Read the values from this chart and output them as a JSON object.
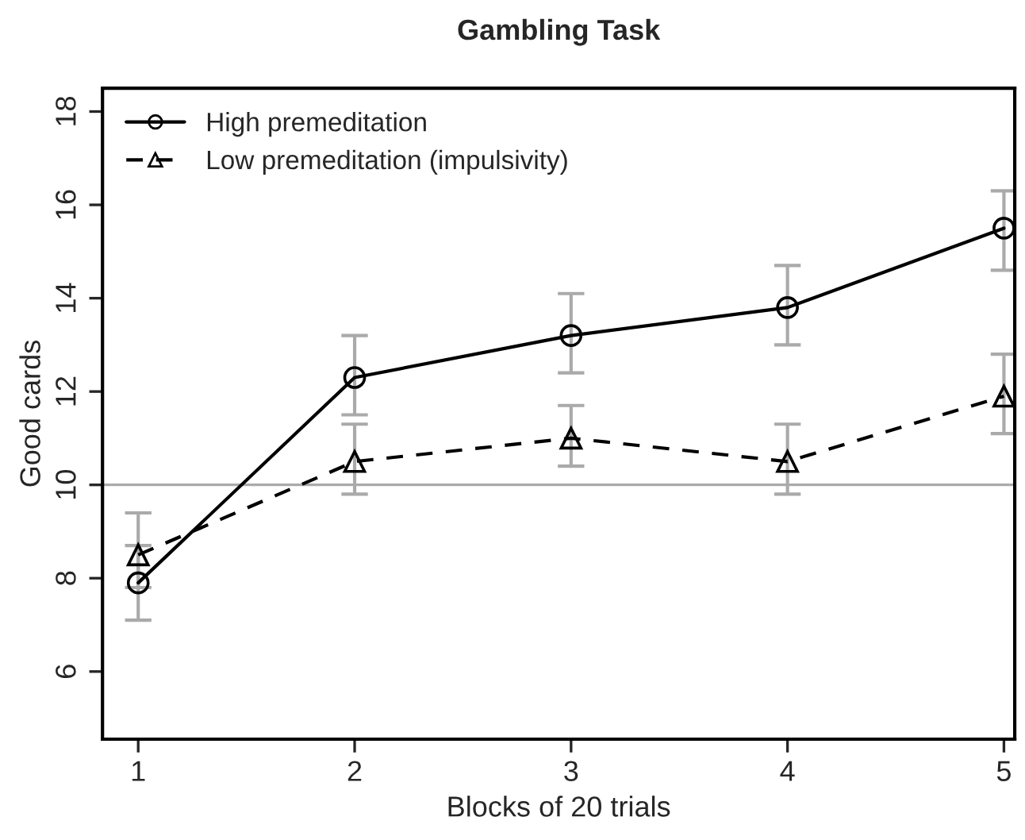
{
  "chart_data": {
    "type": "line",
    "title": "Gambling Task",
    "xlabel": "Blocks of 20 trials",
    "ylabel": "Good cards",
    "x": [
      1,
      2,
      3,
      4,
      5
    ],
    "series": [
      {
        "name": "High premeditation",
        "color": "#000000",
        "marker": "circle",
        "line_style": "solid",
        "values": [
          7.9,
          12.3,
          13.2,
          13.8,
          15.5
        ],
        "errors": [
          [
            7.1,
            9.4
          ],
          [
            11.5,
            13.2
          ],
          [
            12.4,
            14.1
          ],
          [
            13.0,
            14.7
          ],
          [
            14.6,
            16.3
          ]
        ]
      },
      {
        "name": "Low premeditation (impulsivity)",
        "color": "#000000",
        "marker": "triangle",
        "line_style": "dashed",
        "values": [
          8.5,
          10.5,
          11.0,
          10.5,
          11.9
        ],
        "errors": [
          [
            7.8,
            8.7
          ],
          [
            9.8,
            11.3
          ],
          [
            10.4,
            11.7
          ],
          [
            9.8,
            11.3
          ],
          [
            11.1,
            12.8
          ]
        ]
      }
    ],
    "xlim": [
      0.835,
      5.05
    ],
    "ylim": [
      4.55,
      18.5
    ],
    "xticks": [
      1,
      2,
      3,
      4,
      5
    ],
    "yticks": [
      6,
      8,
      10,
      12,
      14,
      16,
      18
    ],
    "ref_lines": [
      {
        "axis": "y",
        "value": 10,
        "color": "#aaaaaa"
      }
    ],
    "grid": false,
    "legend": "top left"
  }
}
